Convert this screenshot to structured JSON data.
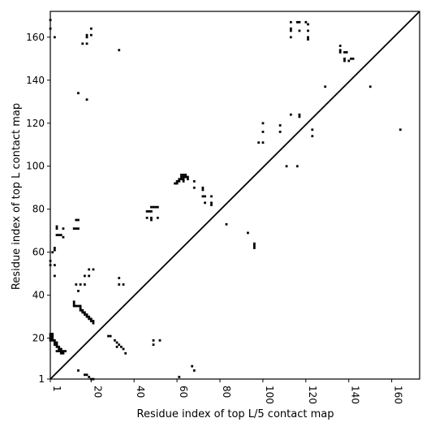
{
  "chart_data": {
    "type": "scatter",
    "xlabel": "Residue index of top L/5 contact map",
    "ylabel": "Residue index of top L contact map",
    "xlim": [
      1,
      173
    ],
    "ylim": [
      1,
      172
    ],
    "xticks": [
      1,
      20,
      40,
      60,
      80,
      100,
      120,
      140,
      160
    ],
    "yticks": [
      1,
      20,
      40,
      60,
      80,
      100,
      120,
      140,
      160
    ],
    "diagonal": true,
    "color": "#000000",
    "upper_points": [
      [
        1,
        168
      ],
      [
        1,
        164
      ],
      [
        3,
        160
      ],
      [
        16,
        157
      ],
      [
        18,
        157
      ],
      [
        18,
        160
      ],
      [
        18,
        161
      ],
      [
        20,
        164
      ],
      [
        20,
        161
      ],
      [
        33,
        154
      ],
      [
        14,
        134
      ],
      [
        18,
        131
      ],
      [
        3,
        61
      ],
      [
        3,
        62
      ],
      [
        2,
        60
      ],
      [
        1,
        56
      ],
      [
        1,
        54
      ],
      [
        3,
        54
      ],
      [
        3,
        49
      ],
      [
        4,
        72
      ],
      [
        4,
        71
      ],
      [
        4,
        68
      ],
      [
        5,
        68
      ],
      [
        6,
        68
      ],
      [
        7,
        67
      ],
      [
        7,
        71
      ],
      [
        12,
        71
      ],
      [
        13,
        71
      ],
      [
        14,
        71
      ],
      [
        13,
        75
      ],
      [
        14,
        75
      ],
      [
        13,
        45
      ],
      [
        14,
        42
      ],
      [
        15,
        45
      ],
      [
        17,
        45
      ],
      [
        17,
        49
      ],
      [
        19,
        49
      ],
      [
        19,
        52
      ],
      [
        21,
        52
      ],
      [
        33,
        48
      ],
      [
        33,
        45
      ],
      [
        35,
        45
      ],
      [
        46,
        79
      ],
      [
        47,
        79
      ],
      [
        48,
        79
      ],
      [
        48,
        81
      ],
      [
        49,
        81
      ],
      [
        50,
        81
      ],
      [
        51,
        81
      ],
      [
        48,
        76
      ],
      [
        48,
        75
      ],
      [
        51,
        76
      ],
      [
        46,
        76
      ],
      [
        68,
        93
      ],
      [
        68,
        90
      ],
      [
        72,
        90
      ],
      [
        72,
        89
      ],
      [
        72,
        86
      ],
      [
        73,
        86
      ],
      [
        76,
        86
      ],
      [
        73,
        83
      ],
      [
        76,
        83
      ],
      [
        76,
        82
      ],
      [
        83,
        73
      ],
      [
        93,
        69
      ],
      [
        96,
        64
      ],
      [
        96,
        63
      ],
      [
        96,
        62
      ],
      [
        98,
        111
      ],
      [
        100,
        111
      ],
      [
        100,
        116
      ],
      [
        100,
        120
      ],
      [
        108,
        116
      ],
      [
        108,
        119
      ],
      [
        111,
        100
      ],
      [
        116,
        100
      ],
      [
        113,
        124
      ],
      [
        113,
        167
      ],
      [
        113,
        164
      ],
      [
        113,
        163
      ],
      [
        113,
        160
      ],
      [
        116,
        167
      ],
      [
        117,
        167
      ],
      [
        117,
        163
      ],
      [
        117,
        124
      ],
      [
        117,
        123
      ],
      [
        120,
        167
      ],
      [
        121,
        166
      ],
      [
        121,
        163
      ],
      [
        121,
        160
      ],
      [
        121,
        159
      ],
      [
        123,
        117
      ],
      [
        123,
        114
      ],
      [
        129,
        137
      ],
      [
        136,
        156
      ],
      [
        136,
        154
      ],
      [
        136,
        153
      ],
      [
        138,
        153
      ],
      [
        139,
        153
      ],
      [
        138,
        150
      ],
      [
        138,
        149
      ],
      [
        140,
        149
      ],
      [
        141,
        150
      ],
      [
        142,
        150
      ],
      [
        150,
        137
      ],
      [
        164,
        117
      ],
      [
        12,
        35
      ],
      [
        12,
        36
      ],
      [
        12,
        37
      ],
      [
        13,
        35
      ],
      [
        14,
        35
      ],
      [
        15,
        35
      ],
      [
        15,
        34
      ],
      [
        15,
        33
      ],
      [
        16,
        33
      ],
      [
        16,
        32
      ],
      [
        17,
        32
      ],
      [
        17,
        31
      ],
      [
        18,
        31
      ],
      [
        18,
        30
      ],
      [
        19,
        30
      ],
      [
        19,
        29
      ],
      [
        20,
        29
      ],
      [
        20,
        28
      ],
      [
        21,
        28
      ],
      [
        21,
        27
      ],
      [
        59,
        92
      ],
      [
        60,
        92
      ],
      [
        60,
        93
      ],
      [
        61,
        93
      ],
      [
        61,
        94
      ],
      [
        62,
        94
      ],
      [
        62,
        95
      ],
      [
        63,
        95
      ],
      [
        63,
        96
      ],
      [
        64,
        96
      ],
      [
        64,
        95
      ],
      [
        65,
        95
      ],
      [
        65,
        94
      ],
      [
        62,
        96
      ],
      [
        63,
        94
      ],
      [
        63,
        93
      ]
    ],
    "lower_points": [
      [
        1,
        22
      ],
      [
        1,
        21
      ],
      [
        1,
        20
      ],
      [
        1,
        19
      ],
      [
        2,
        22
      ],
      [
        2,
        21
      ],
      [
        2,
        20
      ],
      [
        2,
        19
      ],
      [
        3,
        19
      ],
      [
        3,
        18
      ],
      [
        3,
        17
      ],
      [
        4,
        18
      ],
      [
        4,
        17
      ],
      [
        4,
        16
      ],
      [
        5,
        16
      ],
      [
        5,
        15
      ],
      [
        5,
        14
      ],
      [
        6,
        14
      ],
      [
        6,
        13
      ],
      [
        7,
        14
      ],
      [
        7,
        13
      ],
      [
        8,
        14
      ],
      [
        6,
        15
      ],
      [
        4,
        14
      ],
      [
        28,
        21
      ],
      [
        29,
        21
      ],
      [
        31,
        19
      ],
      [
        32,
        18
      ],
      [
        32,
        16
      ],
      [
        33,
        17
      ],
      [
        34,
        16
      ],
      [
        35,
        15
      ],
      [
        36,
        13
      ],
      [
        49,
        19
      ],
      [
        49,
        17
      ],
      [
        52,
        19
      ],
      [
        14,
        5
      ],
      [
        17,
        3
      ],
      [
        18,
        3
      ],
      [
        19,
        2
      ],
      [
        20,
        1
      ],
      [
        21,
        1
      ],
      [
        61,
        2
      ],
      [
        67,
        7
      ],
      [
        68,
        5
      ]
    ]
  }
}
